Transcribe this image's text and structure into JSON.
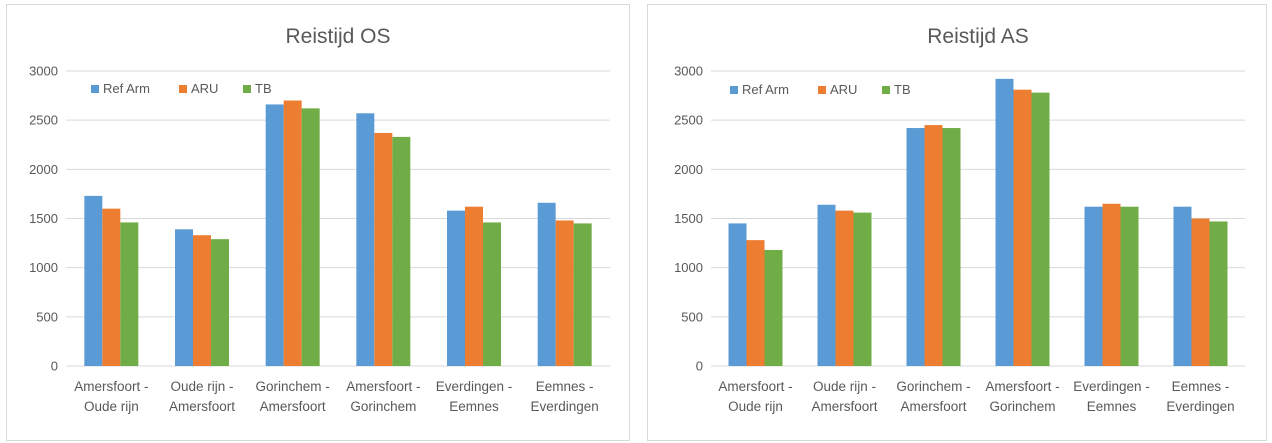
{
  "chart_data": [
    {
      "type": "bar",
      "title": "Reistijd OS",
      "categories": [
        [
          "Amersfoort -",
          "Oude rijn"
        ],
        [
          "Oude rijn -",
          "Amersfoort"
        ],
        [
          "Gorinchem -",
          "Amersfoort"
        ],
        [
          "Amersfoort -",
          "Gorinchem"
        ],
        [
          "Everdingen -",
          "Eemnes"
        ],
        [
          "Eemnes -",
          "Everdingen"
        ]
      ],
      "series": [
        {
          "name": "Ref Arm",
          "color": "#5B9BD5",
          "values": [
            1730,
            1390,
            2660,
            2570,
            1580,
            1660
          ]
        },
        {
          "name": "ARU",
          "color": "#ED7D31",
          "values": [
            1600,
            1330,
            2700,
            2370,
            1620,
            1480
          ]
        },
        {
          "name": "TB",
          "color": "#70AD47",
          "values": [
            1460,
            1290,
            2620,
            2330,
            1460,
            1450
          ]
        }
      ],
      "ylim": [
        0,
        3000
      ],
      "yticks": [
        0,
        500,
        1000,
        1500,
        2000,
        2500,
        3000
      ],
      "xlabel": "",
      "ylabel": "",
      "grid": true,
      "legend_position": "top-left"
    },
    {
      "type": "bar",
      "title": "Reistijd AS",
      "categories": [
        [
          "Amersfoort -",
          "Oude rijn"
        ],
        [
          "Oude rijn -",
          "Amersfoort"
        ],
        [
          "Gorinchem -",
          "Amersfoort"
        ],
        [
          "Amersfoort -",
          "Gorinchem"
        ],
        [
          "Everdingen -",
          "Eemnes"
        ],
        [
          "Eemnes -",
          "Everdingen"
        ]
      ],
      "series": [
        {
          "name": "Ref Arm",
          "color": "#5B9BD5",
          "values": [
            1450,
            1640,
            2420,
            2920,
            1620,
            1620
          ]
        },
        {
          "name": "ARU",
          "color": "#ED7D31",
          "values": [
            1280,
            1580,
            2450,
            2810,
            1650,
            1500
          ]
        },
        {
          "name": "TB",
          "color": "#70AD47",
          "values": [
            1180,
            1560,
            2420,
            2780,
            1620,
            1470
          ]
        }
      ],
      "ylim": [
        0,
        3000
      ],
      "yticks": [
        0,
        500,
        1000,
        1500,
        2000,
        2500,
        3000
      ],
      "xlabel": "",
      "ylabel": "",
      "grid": true,
      "legend_position": "top-left"
    }
  ]
}
